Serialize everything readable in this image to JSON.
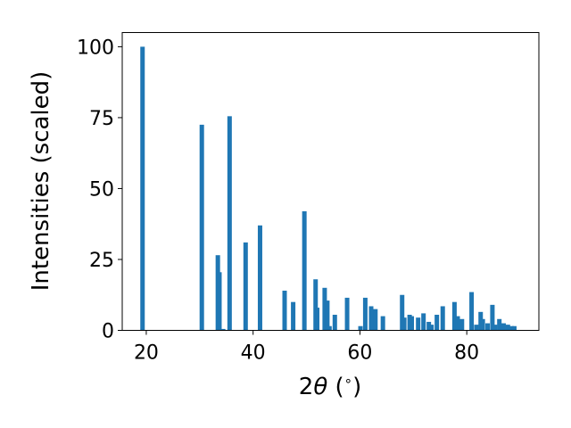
{
  "chart_data": {
    "type": "bar",
    "xlabel_prefix": "2",
    "xlabel_symbol": "θ",
    "xlabel_suffix": " (",
    "xlabel_degree": "∘",
    "xlabel_close": ")",
    "ylabel": "Intensities (scaled)",
    "xlim": [
      15.5,
      93.5
    ],
    "ylim": [
      0,
      105
    ],
    "xticks": [
      20,
      40,
      60,
      80
    ],
    "yticks": [
      0,
      25,
      50,
      75,
      100
    ],
    "grid": false,
    "color": "#1f77b4",
    "series": [
      {
        "x": [
          19.3,
          30.4,
          33.4,
          33.7,
          34.4,
          35.6,
          38.6,
          41.3,
          45.9,
          47.5,
          49.6,
          51.7,
          52.0,
          53.4,
          53.9,
          54.3,
          55.3,
          57.6,
          60.1,
          61.0,
          62.1,
          62.9,
          64.3,
          67.9,
          68.3,
          69.3,
          69.7,
          70.9,
          71.9,
          72.9,
          73.4,
          74.4,
          75.5,
          77.7,
          78.3,
          79.1,
          80.9,
          81.8,
          82.6,
          83.0,
          83.9,
          84.8,
          85.3,
          86.1,
          86.9,
          87.7,
          88.4,
          88.9
        ],
        "y": [
          100,
          72.5,
          26.5,
          20.5,
          0.5,
          75.5,
          31,
          37,
          14,
          10,
          42,
          18,
          8,
          15,
          10.5,
          1.5,
          5.5,
          11.5,
          1.5,
          11.5,
          8.5,
          7.5,
          5,
          12.5,
          4.5,
          5.5,
          5,
          4.5,
          6,
          3,
          2,
          5.5,
          8.5,
          10,
          5,
          4,
          13.5,
          2,
          6.5,
          4,
          2.5,
          9,
          2,
          4,
          2.5,
          2,
          1.5,
          1.5
        ]
      }
    ]
  }
}
